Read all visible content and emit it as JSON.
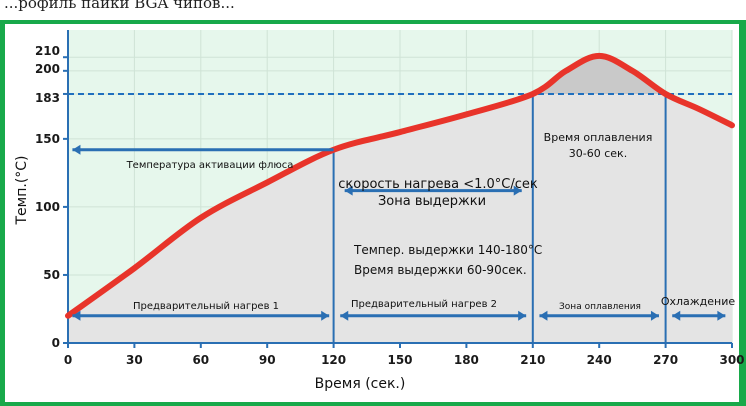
{
  "header_text": "...рофиль пайки BGA чипов...",
  "chart_data": {
    "type": "area",
    "xlabel": "Время (сек.)",
    "ylabel": "Темп.(°C)",
    "xlim": [
      0,
      300
    ],
    "ylim": [
      0,
      230
    ],
    "x_ticks": [
      0,
      30,
      60,
      90,
      120,
      150,
      180,
      210,
      240,
      270,
      300
    ],
    "y_ticks": [
      0,
      50,
      100,
      150,
      183,
      200,
      210
    ],
    "grid": true,
    "series": [
      {
        "points": [
          [
            0,
            20
          ],
          [
            30,
            55
          ],
          [
            60,
            92
          ],
          [
            90,
            118
          ],
          [
            120,
            142
          ],
          [
            150,
            155
          ],
          [
            180,
            168
          ],
          [
            210,
            183
          ],
          [
            225,
            200
          ],
          [
            240,
            211
          ],
          [
            255,
            200
          ],
          [
            270,
            183
          ],
          [
            285,
            172
          ],
          [
            300,
            160
          ]
        ]
      }
    ],
    "reference_line": 183,
    "annotations": {
      "flux_activation": "Температура активации флюса",
      "heating_rate": "скорость нагрева <1.0°C/сек",
      "soak_zone": "Зона выдержки",
      "soak_temp": "Темпер. выдержки 140-180°C",
      "soak_time": "Время выдержки 60-90сек.",
      "reflow_time_line1": "Время оплавления",
      "reflow_time_line2": "30-60 сек.",
      "preheat_1": "Предварительный нагрев 1",
      "preheat_2": "Предварительный нагрев 2",
      "reflow_zone": "Зона оплавления",
      "cooling": "Охлаждение"
    },
    "colors": {
      "background": "#18a94a",
      "plot": "#e6f7ec",
      "curve": "#e8342a",
      "arrows": "#2a6fb3",
      "fill": "#e8e8e8"
    }
  }
}
